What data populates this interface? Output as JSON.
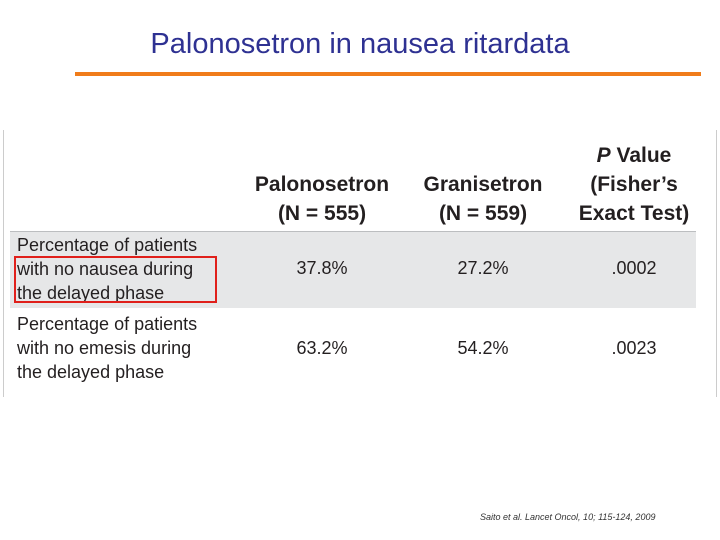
{
  "title": "Palonosetron in nausea ritardata",
  "table": {
    "columns": [
      {
        "lines": [
          "Palonosetron",
          "(N = 555)"
        ]
      },
      {
        "lines": [
          "Granisetron",
          "(N = 559)"
        ]
      },
      {
        "symbol": "P",
        "word": "Value",
        "lines": [
          "(Fisher’s",
          "Exact Test)"
        ]
      }
    ],
    "rows": [
      {
        "label": [
          "Percentage of patients",
          "with no nausea during",
          "the delayed phase"
        ],
        "cells": [
          "37.8%",
          "27.2%",
          ".0002"
        ]
      },
      {
        "label": [
          "Percentage of patients",
          "with no emesis during",
          "the delayed phase"
        ],
        "cells": [
          "63.2%",
          "54.2%",
          ".0023"
        ]
      }
    ]
  },
  "citation": "Saito et al. Lancet Oncol, 10; 115-124, 2009"
}
